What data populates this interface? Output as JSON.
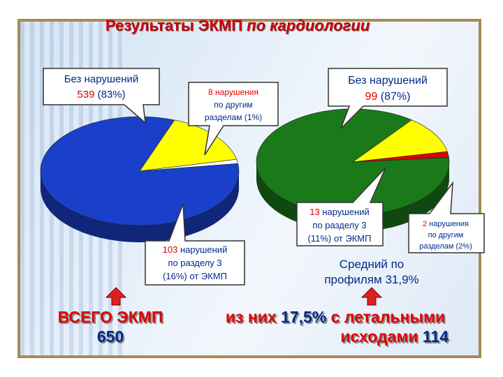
{
  "title": {
    "part1": "Результаты ЭКМП ",
    "part2": "по кардиологии"
  },
  "chart_data": [
    {
      "type": "pie",
      "slices": [
        {
          "label": "Без нарушений",
          "value": 539,
          "percent": 83,
          "color": "#1a3fc9"
        },
        {
          "label": "103 нарушений по разделу 3",
          "value": 103,
          "percent": 16,
          "color": "#ffff00"
        },
        {
          "label": "8 нарушения по другим разделам",
          "value": 8,
          "percent": 1,
          "color": "#ffffff"
        }
      ],
      "total": 650
    },
    {
      "type": "pie",
      "slices": [
        {
          "label": "Без нарушений",
          "value": 99,
          "percent": 87,
          "color": "#1a7a1a"
        },
        {
          "label": "13 нарушений по разделу 3",
          "value": 13,
          "percent": 11,
          "color": "#ffff00"
        },
        {
          "label": "2 нарушения по другим разделам",
          "value": 2,
          "percent": 2,
          "color": "#dd0000"
        }
      ],
      "total": 114
    }
  ],
  "callouts": {
    "c1": {
      "line1": "Без нарушений",
      "num": "539",
      "rest": " (83%)"
    },
    "c2": {
      "line1": "8 нарушения",
      "line2": "по другим",
      "line3": "разделам (1%)"
    },
    "c3": {
      "line1": "Без нарушений",
      "num": "99",
      "rest": " (87%)"
    },
    "c4": {
      "num": "103",
      "line1rest": " нарушений",
      "line2": "по разделу 3",
      "line3": "(16%) от ЭКМП"
    },
    "c5": {
      "num": "13",
      "line1rest": " нарушений",
      "line2": "по разделу 3",
      "line3": "(11%) от ЭКМП"
    },
    "c6": {
      "num": "2",
      "line1rest": " нарушения",
      "line2": "по другим",
      "line3": "разделам (2%)"
    }
  },
  "average": {
    "line1": "Средний по",
    "line2": "профилям 31,9%"
  },
  "total_left": {
    "line1": "ВСЕГО ЭКМП",
    "value": "650"
  },
  "total_right": {
    "line1a": "из них ",
    "pct": "17,5%",
    "line1b": " с летальными",
    "line2a": "исходами ",
    "value": "114"
  },
  "colors": {
    "red": "#e00000",
    "blue": "#002a8a",
    "arrow": "#e02020"
  }
}
